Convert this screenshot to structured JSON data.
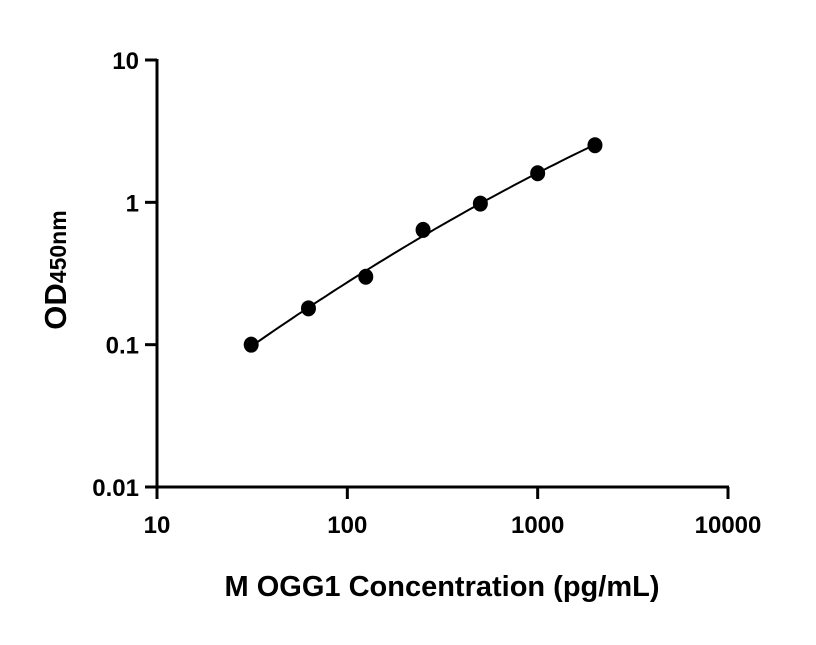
{
  "chart_data": {
    "type": "scatter",
    "title": "",
    "xlabel": "M OGG1 Concentration (pg/mL)",
    "ylabel_main": "OD",
    "ylabel_sub": "450nm",
    "x_scale": "log",
    "y_scale": "log",
    "xlim": [
      10,
      10000
    ],
    "ylim": [
      0.01,
      10
    ],
    "x_ticks": [
      10,
      100,
      1000,
      10000
    ],
    "x_tick_labels": [
      "10",
      "100",
      "1000",
      "10000"
    ],
    "y_ticks": [
      0.01,
      0.1,
      1,
      10
    ],
    "y_tick_labels": [
      "0.01",
      "0.1",
      "1",
      "10"
    ],
    "grid": false,
    "legend": "none",
    "fit_line": true,
    "marker_color": "#000000",
    "points": [
      {
        "x": 31.25,
        "y": 0.1
      },
      {
        "x": 62.5,
        "y": 0.18
      },
      {
        "x": 125,
        "y": 0.3
      },
      {
        "x": 250,
        "y": 0.64
      },
      {
        "x": 500,
        "y": 0.98
      },
      {
        "x": 1000,
        "y": 1.6
      },
      {
        "x": 2000,
        "y": 2.52
      }
    ]
  }
}
